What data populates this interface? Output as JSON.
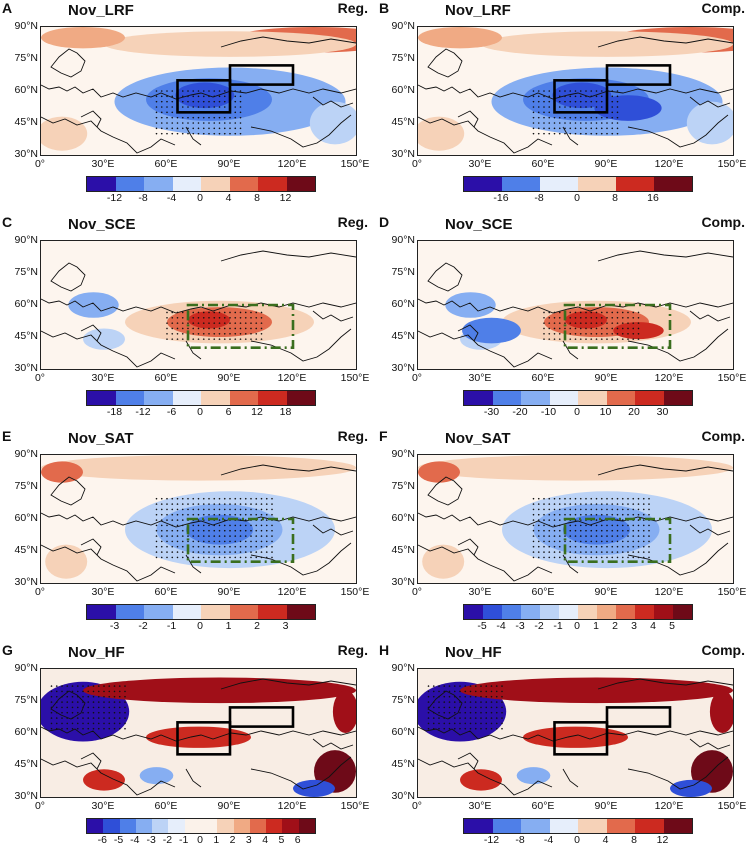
{
  "panels": [
    {
      "letter": "A",
      "title": "Nov_LRF",
      "tag": "Reg.",
      "ticks": [
        "-12",
        "-8",
        "-4",
        "0",
        "4",
        "8",
        "12"
      ],
      "scheme": "div",
      "box": "solid"
    },
    {
      "letter": "B",
      "title": "Nov_LRF",
      "tag": "Comp.",
      "ticks": [
        "-16",
        "-8",
        "0",
        "8",
        "16"
      ],
      "scheme": "div",
      "box": "solid"
    },
    {
      "letter": "C",
      "title": "Nov_SCE",
      "tag": "Reg.",
      "ticks": [
        "-18",
        "-12",
        "-6",
        "0",
        "6",
        "12",
        "18"
      ],
      "scheme": "warm",
      "box": "dash"
    },
    {
      "letter": "D",
      "title": "Nov_SCE",
      "tag": "Comp.",
      "ticks": [
        "-30",
        "-20",
        "-10",
        "0",
        "10",
        "20",
        "30"
      ],
      "scheme": "warm",
      "box": "dash"
    },
    {
      "letter": "E",
      "title": "Nov_SAT",
      "tag": "Reg.",
      "ticks": [
        "-3",
        "-2",
        "-1",
        "0",
        "1",
        "2",
        "3"
      ],
      "scheme": "cold",
      "box": "dash"
    },
    {
      "letter": "F",
      "title": "Nov_SAT",
      "tag": "Comp.",
      "ticks": [
        "-5",
        "-4",
        "-3",
        "-2",
        "-1",
        "0",
        "1",
        "2",
        "3",
        "4",
        "5"
      ],
      "scheme": "cold",
      "box": "dash"
    },
    {
      "letter": "G",
      "title": "Nov_HF",
      "tag": "Reg.",
      "ticks": [
        "-6",
        "-5",
        "-4",
        "-3",
        "-2",
        "-1",
        "0",
        "1",
        "2",
        "3",
        "4",
        "5",
        "6"
      ],
      "scheme": "hf",
      "box": "solid"
    },
    {
      "letter": "H",
      "title": "Nov_HF",
      "tag": "Comp.",
      "ticks": [
        "-12",
        "-8",
        "-4",
        "0",
        "4",
        "8",
        "12"
      ],
      "scheme": "hf",
      "box": "solid"
    }
  ],
  "lat_labels": [
    "90°N",
    "75°N",
    "60°N",
    "45°N",
    "30°N"
  ],
  "lon_labels": [
    "0°",
    "30°E",
    "60°E",
    "90°E",
    "120°E",
    "150°E"
  ],
  "palette": [
    "#2b0fa8",
    "#2f4fd8",
    "#4f7fe8",
    "#86aef2",
    "#bcd3f6",
    "#e6eefb",
    "#fbf2ea",
    "#f6d2b8",
    "#f0aa84",
    "#e26a4c",
    "#cc2a20",
    "#a00f18",
    "#6e0a18"
  ]
}
